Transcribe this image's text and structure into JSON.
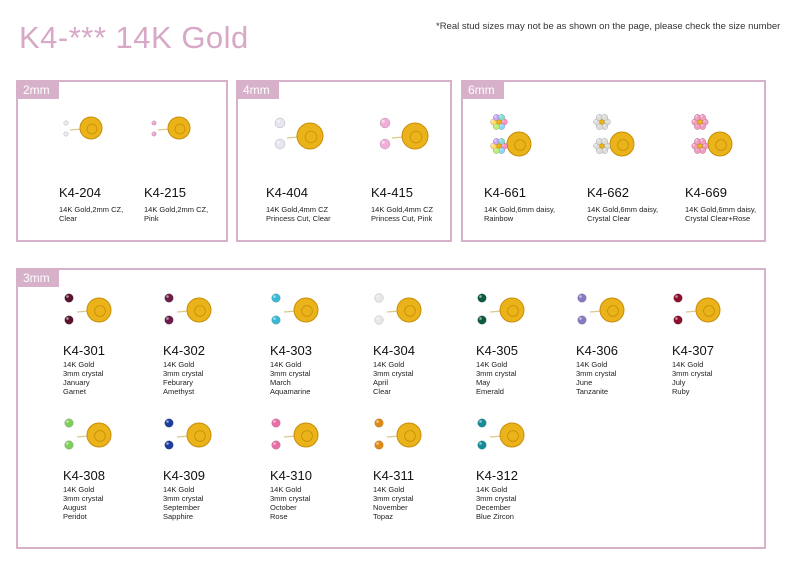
{
  "header": {
    "title": "K4-***  14K Gold",
    "note": "*Real stud sizes may not be as shown on the page, please check the size number"
  },
  "colors": {
    "gold": "#e9b319",
    "gold_dark": "#c98d08",
    "frame": "#d7b1ca"
  },
  "sections": {
    "s2": {
      "label": "2mm",
      "items": [
        {
          "code": "K4-204",
          "desc": "14K Gold,2mm CZ,\nClear",
          "stone": "#ece9f2",
          "kind": "tiny"
        },
        {
          "code": "K4-215",
          "desc": "14K Gold,2mm CZ,\nPink",
          "stone": "#f0a3d0",
          "kind": "tiny"
        }
      ]
    },
    "s4": {
      "label": "4mm",
      "items": [
        {
          "code": "K4-404",
          "desc": "14K Gold,4mm CZ\nPrincess  Cut, Clear",
          "stone": "#e6e6f0",
          "kind": "med"
        },
        {
          "code": "K4-415",
          "desc": "14K Gold,4mm CZ\nPrincess  Cut, Pink",
          "stone": "#f0aed8",
          "kind": "med"
        }
      ]
    },
    "s6": {
      "label": "6mm",
      "items": [
        {
          "code": "K4-661",
          "desc": "14K Gold,6mm daisy,\nRainbow",
          "stone": "#ff9ec9",
          "kind": "daisy-rainbow"
        },
        {
          "code": "K4-662",
          "desc": "14K Gold,6mm daisy,\nCrystal Clear",
          "stone": "#dcdcdc",
          "kind": "daisy"
        },
        {
          "code": "K4-669",
          "desc": "14K Gold,6mm daisy,\nCrystal Clear+Rose",
          "stone": "#f29cc4",
          "kind": "daisy"
        }
      ]
    },
    "s3": {
      "label": "3mm",
      "items": [
        {
          "code": "K4-301",
          "desc": "14K Gold\n3mm crystal\nJanuary\nGarnet",
          "stone": "#5a1430"
        },
        {
          "code": "K4-302",
          "desc": "14K Gold\n3mm crystal\nFeburary\nAmethyst",
          "stone": "#6b1c48"
        },
        {
          "code": "K4-303",
          "desc": "14K Gold\n3mm crystal\nMarch\nAquamarine",
          "stone": "#38b9d6"
        },
        {
          "code": "K4-304",
          "desc": "14K Gold\n3mm crystal\nApril\nClear",
          "stone": "#e8e8e8"
        },
        {
          "code": "K4-305",
          "desc": "14K Gold\n3mm crystal\nMay\nEmerald",
          "stone": "#0e5c3e"
        },
        {
          "code": "K4-306",
          "desc": "14K Gold\n3mm crystal\nJune\nTanzanite",
          "stone": "#8a79c0"
        },
        {
          "code": "K4-307",
          "desc": "14K Gold\n3mm crystal\nJuly\nRuby",
          "stone": "#8c0f2e"
        },
        {
          "code": "K4-308",
          "desc": "14K Gold\n3mm crystal\nAugust\nPeridot",
          "stone": "#7fcf5b"
        },
        {
          "code": "K4-309",
          "desc": "14K Gold\n3mm crystal\nSeptember\nSapphire",
          "stone": "#1c3f9e"
        },
        {
          "code": "K4-310",
          "desc": "14K Gold\n3mm crystal\nOctober\nRose",
          "stone": "#e86ea8"
        },
        {
          "code": "K4-311",
          "desc": "14K Gold\n3mm crystal\nNovember\nTopaz",
          "stone": "#e08a15"
        },
        {
          "code": "K4-312",
          "desc": "14K Gold\n3mm crystal\nDecember\nBlue Zircon",
          "stone": "#148f9a"
        }
      ]
    }
  }
}
